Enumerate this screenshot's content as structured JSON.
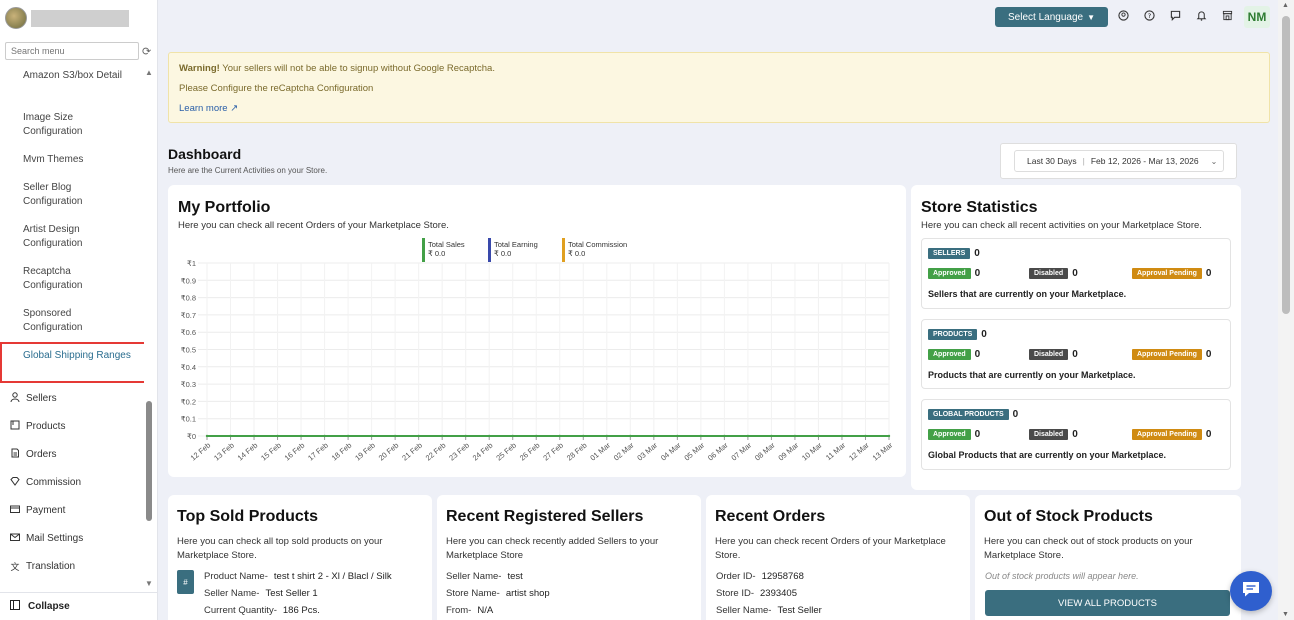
{
  "sidebar": {
    "search_placeholder": "Search menu",
    "sub_items": [
      {
        "label": "Amazon S3/box Detail"
      },
      {
        "label": "Image Size Configuration"
      },
      {
        "label": "Mvm Themes"
      },
      {
        "label": "Seller Blog Configuration"
      },
      {
        "label": "Artist Design Configuration"
      },
      {
        "label": "Recaptcha Configuration"
      },
      {
        "label": "Sponsored Configuration"
      },
      {
        "label": "Global Shipping Ranges"
      }
    ],
    "main_items": [
      {
        "label": "Sellers",
        "icon": "user-icon"
      },
      {
        "label": "Products",
        "icon": "box-icon"
      },
      {
        "label": "Orders",
        "icon": "document-icon"
      },
      {
        "label": "Commission",
        "icon": "gem-icon"
      },
      {
        "label": "Payment",
        "icon": "card-icon"
      },
      {
        "label": "Mail Settings",
        "icon": "mail-icon"
      },
      {
        "label": "Translation",
        "icon": "translate-icon"
      }
    ],
    "collapse_label": "Collapse"
  },
  "topbar": {
    "language_label": "Select Language",
    "user_initials": "NM"
  },
  "warning": {
    "bold": "Warning!",
    "text": " Your sellers will not be able to signup without Google Recaptcha.",
    "line2": "Please Configure the reCaptcha Configuration",
    "link": "Learn more"
  },
  "dashboard": {
    "title": "Dashboard",
    "subtitle": "Here are the Current Activities on your Store.",
    "range_label": "Last 30 Days",
    "range_dates": "Feb 12, 2026 - Mar 13, 2026"
  },
  "portfolio": {
    "title": "My Portfolio",
    "subtitle": "Here you can check all recent Orders of your Marketplace Store.",
    "legend": [
      {
        "name": "Total Sales",
        "value": "₹ 0.0",
        "color": "#43a047"
      },
      {
        "name": "Total Earning",
        "value": "₹ 0.0",
        "color": "#3949ab"
      },
      {
        "name": "Total Commission",
        "value": "₹ 0.0",
        "color": "#e0a020"
      }
    ]
  },
  "chart_data": {
    "type": "line",
    "yticks": [
      "₹1",
      "₹0.9",
      "₹0.8",
      "₹0.7",
      "₹0.6",
      "₹0.5",
      "₹0.4",
      "₹0.3",
      "₹0.2",
      "₹0.1",
      "₹0"
    ],
    "ylim": [
      0,
      1
    ],
    "x": [
      "12 Feb",
      "13 Feb",
      "14 Feb",
      "15 Feb",
      "16 Feb",
      "17 Feb",
      "18 Feb",
      "19 Feb",
      "20 Feb",
      "21 Feb",
      "22 Feb",
      "23 Feb",
      "24 Feb",
      "25 Feb",
      "26 Feb",
      "27 Feb",
      "28 Feb",
      "01 Mar",
      "02 Mar",
      "03 Mar",
      "04 Mar",
      "05 Mar",
      "06 Mar",
      "07 Mar",
      "08 Mar",
      "09 Mar",
      "10 Mar",
      "11 Mar",
      "12 Mar",
      "13 Mar"
    ],
    "series": [
      {
        "name": "Total Sales",
        "values": [
          0,
          0,
          0,
          0,
          0,
          0,
          0,
          0,
          0,
          0,
          0,
          0,
          0,
          0,
          0,
          0,
          0,
          0,
          0,
          0,
          0,
          0,
          0,
          0,
          0,
          0,
          0,
          0,
          0,
          0
        ]
      },
      {
        "name": "Total Earning",
        "values": [
          0,
          0,
          0,
          0,
          0,
          0,
          0,
          0,
          0,
          0,
          0,
          0,
          0,
          0,
          0,
          0,
          0,
          0,
          0,
          0,
          0,
          0,
          0,
          0,
          0,
          0,
          0,
          0,
          0,
          0
        ]
      },
      {
        "name": "Total Commission",
        "values": [
          0,
          0,
          0,
          0,
          0,
          0,
          0,
          0,
          0,
          0,
          0,
          0,
          0,
          0,
          0,
          0,
          0,
          0,
          0,
          0,
          0,
          0,
          0,
          0,
          0,
          0,
          0,
          0,
          0,
          0
        ]
      }
    ],
    "grid": true
  },
  "store_stats": {
    "title": "Store Statistics",
    "subtitle": "Here you can check all recent activities on your Marketplace Store.",
    "boxes": [
      {
        "label": "SELLERS",
        "count": "0",
        "approved": "0",
        "disabled": "0",
        "pending": "0",
        "desc": "Sellers that are currently on your Marketplace."
      },
      {
        "label": "PRODUCTS",
        "count": "0",
        "approved": "0",
        "disabled": "0",
        "pending": "0",
        "desc": "Products that are currently on your Marketplace."
      },
      {
        "label": "GLOBAL PRODUCTS",
        "count": "0",
        "approved": "0",
        "disabled": "0",
        "pending": "0",
        "desc": "Global Products that are currently on your Marketplace."
      }
    ],
    "approved_label": "Approved",
    "disabled_label": "Disabled",
    "pending_label": "Approval Pending"
  },
  "top_sold": {
    "title": "Top Sold Products",
    "subtitle": "Here you can check all top sold products on your Marketplace Store.",
    "hash": "#",
    "product_name_label": "Product Name-",
    "product_name": "test t shirt 2 - Xl / Blacl / Silk",
    "seller_name_label": "Seller Name-",
    "seller_name": "Test Seller 1",
    "qty_label": "Current Quantity-",
    "qty": "186 Pcs."
  },
  "recent_sellers": {
    "title": "Recent Registered Sellers",
    "subtitle": "Here you can check recently added Sellers to your Marketplace Store",
    "seller_name_label": "Seller Name-",
    "seller_name": "test",
    "store_name_label": "Store Name-",
    "store_name": "artist shop",
    "from_label": "From-",
    "from": "N/A"
  },
  "recent_orders": {
    "title": "Recent Orders",
    "subtitle": "Here you can check recent Orders of your Marketplace Store.",
    "order_id_label": "Order ID-",
    "order_id": "12958768",
    "store_id_label": "Store ID-",
    "store_id": "2393405",
    "seller_name_label": "Seller Name-",
    "seller_name": "Test Seller"
  },
  "out_of_stock": {
    "title": "Out of Stock Products",
    "subtitle": "Here you can check out of stock products on your Marketplace Store.",
    "placeholder": "Out of stock products will appear here.",
    "button": "VIEW ALL PRODUCTS"
  }
}
